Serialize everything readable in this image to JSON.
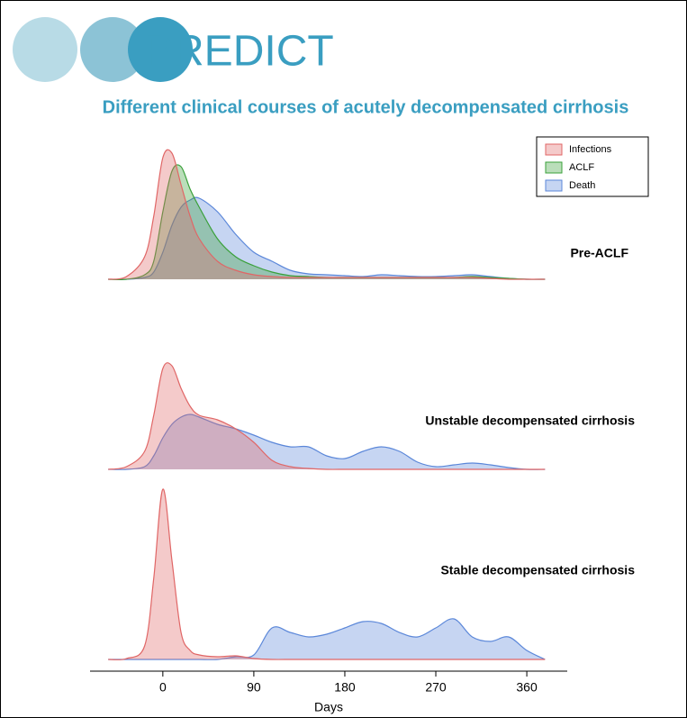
{
  "logo": "PREDICT",
  "chart_data": {
    "type": "ridgeline",
    "title": "Different clinical courses of acutely decompensated cirrhosis",
    "xlabel": "Days",
    "x": [
      -54,
      -36,
      -18,
      -9,
      0,
      9,
      18,
      27,
      36,
      54,
      72,
      90,
      108,
      126,
      144,
      162,
      180,
      198,
      216,
      234,
      252,
      270,
      288,
      306,
      324,
      342,
      360,
      378
    ],
    "xlim": [
      -72,
      400
    ],
    "xticks": [
      0,
      90,
      180,
      270,
      360
    ],
    "ylim": [
      0,
      200
    ],
    "legend": "upper right",
    "ridges": [
      {
        "name": "Pre-ACLF",
        "series": [
          {
            "name": "Infections",
            "color": "#e06666",
            "values": [
              0,
              3,
              25,
              70,
              135,
              140,
              105,
              70,
              45,
              20,
              10,
              5,
              3,
              2,
              2,
              2,
              2,
              2,
              2,
              2,
              2,
              2,
              2,
              2,
              1,
              0,
              0,
              0
            ]
          },
          {
            "name": "ACLF",
            "color": "#3aa03a",
            "values": [
              0,
              0,
              5,
              20,
              75,
              120,
              125,
              100,
              80,
              45,
              25,
              15,
              8,
              4,
              3,
              2,
              2,
              2,
              2,
              2,
              2,
              2,
              2,
              3,
              2,
              1,
              0,
              0
            ]
          },
          {
            "name": "Death",
            "color": "#5b87d9",
            "values": [
              0,
              0,
              2,
              8,
              30,
              60,
              80,
              88,
              90,
              75,
              50,
              30,
              20,
              10,
              6,
              5,
              4,
              3,
              5,
              4,
              3,
              3,
              4,
              5,
              3,
              1,
              0,
              0
            ]
          }
        ]
      },
      {
        "name": "Unstable decompensated cirrhosis",
        "series": [
          {
            "name": "Infections",
            "color": "#e06666",
            "values": [
              0,
              3,
              20,
              60,
              112,
              115,
              90,
              70,
              60,
              55,
              45,
              30,
              10,
              3,
              1,
              0,
              0,
              0,
              0,
              0,
              0,
              0,
              0,
              0,
              0,
              0,
              0,
              0
            ]
          },
          {
            "name": "Death",
            "color": "#5b87d9",
            "values": [
              0,
              0,
              3,
              15,
              35,
              50,
              58,
              61,
              58,
              50,
              45,
              38,
              30,
              25,
              25,
              15,
              12,
              20,
              25,
              20,
              8,
              3,
              5,
              7,
              5,
              2,
              0,
              0
            ]
          }
        ]
      },
      {
        "name": "Stable decompensated cirrhosis",
        "series": [
          {
            "name": "Infections",
            "color": "#e06666",
            "values": [
              0,
              1,
              15,
              90,
              189,
              110,
              30,
              10,
              5,
              3,
              4,
              1,
              0,
              0,
              0,
              0,
              0,
              0,
              0,
              0,
              0,
              0,
              0,
              0,
              0,
              0,
              0,
              0
            ]
          },
          {
            "name": "Death",
            "color": "#5b87d9",
            "values": [
              0,
              0,
              0,
              0,
              0,
              0,
              0,
              0,
              0,
              0,
              3,
              5,
              35,
              30,
              25,
              28,
              35,
              42,
              40,
              30,
              25,
              35,
              45,
              25,
              20,
              25,
              10,
              0
            ]
          }
        ]
      }
    ]
  }
}
